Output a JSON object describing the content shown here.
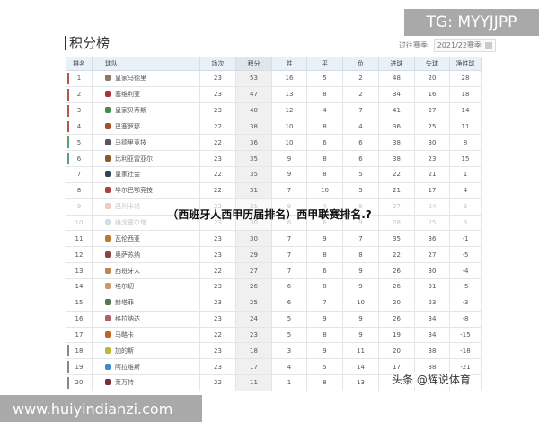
{
  "header": {
    "title": "积分榜",
    "season_label": "过往赛季:",
    "season_value": "2021/22赛季"
  },
  "columns": [
    "排名",
    "球队",
    "场次",
    "积分",
    "胜",
    "平",
    "负",
    "进球",
    "失球",
    "净胜球"
  ],
  "colors": {
    "champions": "#b0554a",
    "europa": "#5aa070",
    "relegation": "#888888",
    "header_bg": "#e8f1f8"
  },
  "rows": [
    [
      "1",
      "皇家马德里",
      "23",
      "53",
      "16",
      "5",
      "2",
      "48",
      "20",
      "28"
    ],
    [
      "2",
      "塞维利亚",
      "23",
      "47",
      "13",
      "8",
      "2",
      "34",
      "16",
      "18"
    ],
    [
      "3",
      "皇家贝蒂斯",
      "23",
      "40",
      "12",
      "4",
      "7",
      "41",
      "27",
      "14"
    ],
    [
      "4",
      "巴塞罗那",
      "22",
      "38",
      "10",
      "8",
      "4",
      "36",
      "25",
      "11"
    ],
    [
      "5",
      "马德里竞技",
      "22",
      "36",
      "10",
      "6",
      "6",
      "38",
      "30",
      "8"
    ],
    [
      "6",
      "比利亚雷亚尔",
      "23",
      "35",
      "9",
      "8",
      "6",
      "38",
      "23",
      "15"
    ],
    [
      "7",
      "皇家社会",
      "22",
      "35",
      "9",
      "8",
      "5",
      "22",
      "21",
      "1"
    ],
    [
      "8",
      "毕尔巴鄂竞技",
      "22",
      "31",
      "7",
      "10",
      "5",
      "21",
      "17",
      "4"
    ],
    [
      "9",
      "巴列卡诺",
      "22",
      "31",
      "9",
      "4",
      "9",
      "27",
      "24",
      "3"
    ],
    [
      "10",
      "维戈塞尔塔",
      "23",
      "30",
      "8",
      "6",
      "9",
      "28",
      "25",
      "3"
    ],
    [
      "11",
      "瓦伦西亚",
      "23",
      "30",
      "7",
      "9",
      "7",
      "35",
      "36",
      "-1"
    ],
    [
      "12",
      "奥萨苏纳",
      "23",
      "29",
      "7",
      "8",
      "8",
      "22",
      "27",
      "-5"
    ],
    [
      "13",
      "西班牙人",
      "22",
      "27",
      "7",
      "6",
      "9",
      "26",
      "30",
      "-4"
    ],
    [
      "14",
      "埃尔切",
      "23",
      "26",
      "6",
      "8",
      "9",
      "26",
      "31",
      "-5"
    ],
    [
      "15",
      "赫塔菲",
      "23",
      "25",
      "6",
      "7",
      "10",
      "20",
      "23",
      "-3"
    ],
    [
      "16",
      "格拉纳达",
      "23",
      "24",
      "5",
      "9",
      "9",
      "26",
      "34",
      "-8"
    ],
    [
      "17",
      "马略卡",
      "22",
      "23",
      "5",
      "8",
      "9",
      "19",
      "34",
      "-15"
    ],
    [
      "18",
      "加的斯",
      "23",
      "18",
      "3",
      "9",
      "11",
      "20",
      "38",
      "-18"
    ],
    [
      "19",
      "阿拉维斯",
      "23",
      "17",
      "4",
      "5",
      "14",
      "17",
      "38",
      "-21"
    ],
    [
      "20",
      "莱万特",
      "22",
      "11",
      "1",
      "8",
      "13",
      "",
      "",
      ""
    ]
  ],
  "watermarks": {
    "tg": "TG: MYYJJPP",
    "url": "www.huiyindianzi.com",
    "caption": "（西班牙人西甲历届排名）西甲联赛排名.?",
    "toutiao": "头条 @辉说体育"
  }
}
